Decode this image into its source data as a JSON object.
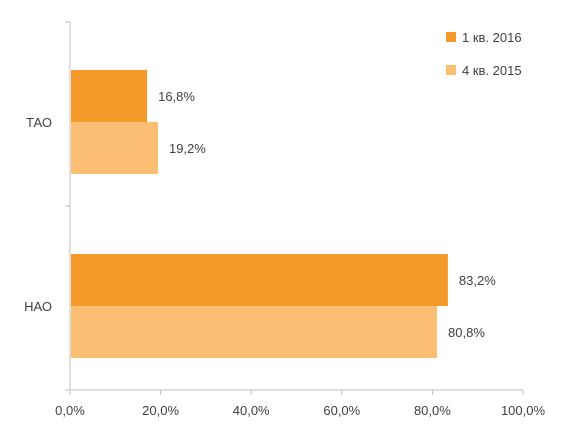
{
  "chart_data": {
    "type": "bar",
    "orientation": "horizontal",
    "categories": [
      "ТАО",
      "НАО"
    ],
    "series": [
      {
        "name": "1 кв. 2016",
        "color": "#F39A2A",
        "values": [
          16.8,
          83.2
        ],
        "labels": [
          "16,8%",
          "83,2%"
        ]
      },
      {
        "name": "4 кв. 2015",
        "color": "#FBBE72",
        "values": [
          19.2,
          80.8
        ],
        "labels": [
          "19,2%",
          "80,8%"
        ]
      }
    ],
    "xlim": [
      0,
      100
    ],
    "xticks": [
      0,
      20,
      40,
      60,
      80,
      100
    ],
    "xtick_labels": [
      "0,0%",
      "20,0%",
      "40,0%",
      "60,0%",
      "80,0%",
      "100,0%"
    ],
    "title": "",
    "xlabel": "",
    "ylabel": "",
    "grid": false,
    "legend_position": "top-right"
  }
}
